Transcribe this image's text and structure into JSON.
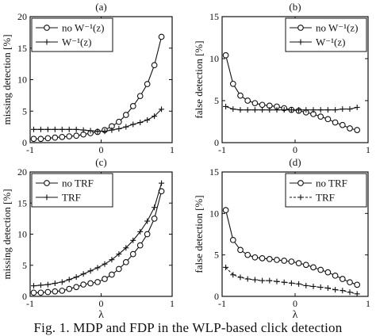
{
  "chart_data": [
    {
      "type": "line",
      "panel": "(a)",
      "xlabel": "",
      "ylabel": "missing detection [%]",
      "xlim": [
        -1,
        1
      ],
      "ylim": [
        0,
        20
      ],
      "xticks": [
        "-1",
        "0",
        "1"
      ],
      "yticks": [
        "0",
        "5",
        "10",
        "15",
        "20"
      ],
      "legend": "top-left",
      "x": [
        -0.95,
        -0.85,
        -0.75,
        -0.65,
        -0.55,
        -0.45,
        -0.35,
        -0.25,
        -0.15,
        -0.05,
        0.05,
        0.15,
        0.25,
        0.35,
        0.45,
        0.55,
        0.65,
        0.75,
        0.85
      ],
      "series": [
        {
          "name": "no W⁻¹(z)",
          "marker": "circle",
          "values": [
            0.6,
            0.6,
            0.7,
            0.8,
            0.9,
            1.0,
            1.1,
            1.3,
            1.5,
            1.7,
            2.0,
            2.6,
            3.3,
            4.4,
            5.8,
            7.4,
            9.3,
            12.3,
            16.8
          ]
        },
        {
          "name": "W⁻¹(z)",
          "marker": "plus",
          "values": [
            2.1,
            2.1,
            2.1,
            2.1,
            2.1,
            2.1,
            2.1,
            2.0,
            1.9,
            1.8,
            1.8,
            2.0,
            2.2,
            2.5,
            2.9,
            3.2,
            3.6,
            4.2,
            5.3
          ]
        }
      ]
    },
    {
      "type": "line",
      "panel": "(b)",
      "xlabel": "",
      "ylabel": "false detection [%]",
      "xlim": [
        -1,
        1
      ],
      "ylim": [
        0,
        15
      ],
      "xticks": [
        "-1",
        "0",
        "1"
      ],
      "yticks": [
        "0",
        "5",
        "10",
        "15"
      ],
      "legend": "top-right",
      "x": [
        -0.95,
        -0.85,
        -0.75,
        -0.65,
        -0.55,
        -0.45,
        -0.35,
        -0.25,
        -0.15,
        -0.05,
        0.05,
        0.15,
        0.25,
        0.35,
        0.45,
        0.55,
        0.65,
        0.75,
        0.85
      ],
      "series": [
        {
          "name": "no W⁻¹(z)",
          "marker": "circle",
          "values": [
            10.4,
            7.0,
            5.6,
            5.0,
            4.7,
            4.5,
            4.4,
            4.3,
            4.1,
            3.9,
            3.8,
            3.6,
            3.4,
            3.1,
            2.8,
            2.4,
            2.1,
            1.7,
            1.5
          ]
        },
        {
          "name": "W⁻¹(z)",
          "marker": "plus",
          "values": [
            4.3,
            4.0,
            3.9,
            3.9,
            3.9,
            3.9,
            3.9,
            3.9,
            3.9,
            3.9,
            3.9,
            3.9,
            3.9,
            3.9,
            3.9,
            3.9,
            4.0,
            4.0,
            4.2
          ]
        }
      ]
    },
    {
      "type": "line",
      "panel": "(c)",
      "xlabel": "λ",
      "ylabel": "missing detection [%]",
      "xlim": [
        -1,
        1
      ],
      "ylim": [
        0,
        20
      ],
      "xticks": [
        "-1",
        "0",
        "1"
      ],
      "yticks": [
        "0",
        "5",
        "10",
        "15",
        "20"
      ],
      "legend": "top-left",
      "x": [
        -0.95,
        -0.85,
        -0.75,
        -0.65,
        -0.55,
        -0.45,
        -0.35,
        -0.25,
        -0.15,
        -0.05,
        0.05,
        0.15,
        0.25,
        0.35,
        0.45,
        0.55,
        0.65,
        0.75,
        0.85
      ],
      "series": [
        {
          "name": "no TRF",
          "marker": "circle",
          "values": [
            0.6,
            0.6,
            0.7,
            0.8,
            0.9,
            1.2,
            1.5,
            1.9,
            2.1,
            2.3,
            2.8,
            3.5,
            4.4,
            5.5,
            6.8,
            8.2,
            10.0,
            12.5,
            16.9
          ]
        },
        {
          "name": "TRF",
          "marker": "plus",
          "values": [
            1.7,
            1.8,
            1.9,
            2.1,
            2.3,
            2.7,
            3.1,
            3.6,
            4.1,
            4.6,
            5.2,
            5.9,
            6.8,
            7.8,
            9.0,
            10.4,
            12.1,
            14.3,
            18.2
          ]
        }
      ]
    },
    {
      "type": "line",
      "panel": "(d)",
      "xlabel": "λ",
      "ylabel": "false detection [%]",
      "xlim": [
        -1,
        1
      ],
      "ylim": [
        0,
        15
      ],
      "xticks": [
        "-1",
        "0",
        "1"
      ],
      "yticks": [
        "0",
        "5",
        "10",
        "15"
      ],
      "legend": "top-right",
      "x": [
        -0.95,
        -0.85,
        -0.75,
        -0.65,
        -0.55,
        -0.45,
        -0.35,
        -0.25,
        -0.15,
        -0.05,
        0.05,
        0.15,
        0.25,
        0.35,
        0.45,
        0.55,
        0.65,
        0.75,
        0.85
      ],
      "series": [
        {
          "name": "no TRF",
          "marker": "circle",
          "values": [
            10.4,
            6.8,
            5.6,
            5.0,
            4.7,
            4.6,
            4.5,
            4.4,
            4.3,
            4.2,
            4.0,
            3.8,
            3.5,
            3.2,
            2.9,
            2.5,
            2.1,
            1.7,
            1.4
          ]
        },
        {
          "name": "TRF",
          "marker": "plus",
          "values": [
            3.5,
            2.6,
            2.3,
            2.1,
            2.0,
            1.9,
            1.9,
            1.8,
            1.7,
            1.6,
            1.5,
            1.3,
            1.2,
            1.1,
            1.0,
            0.8,
            0.7,
            0.5,
            0.3
          ]
        }
      ]
    }
  ],
  "caption": "Fig. 1. MDP and FDP in the WLP-based click detection"
}
